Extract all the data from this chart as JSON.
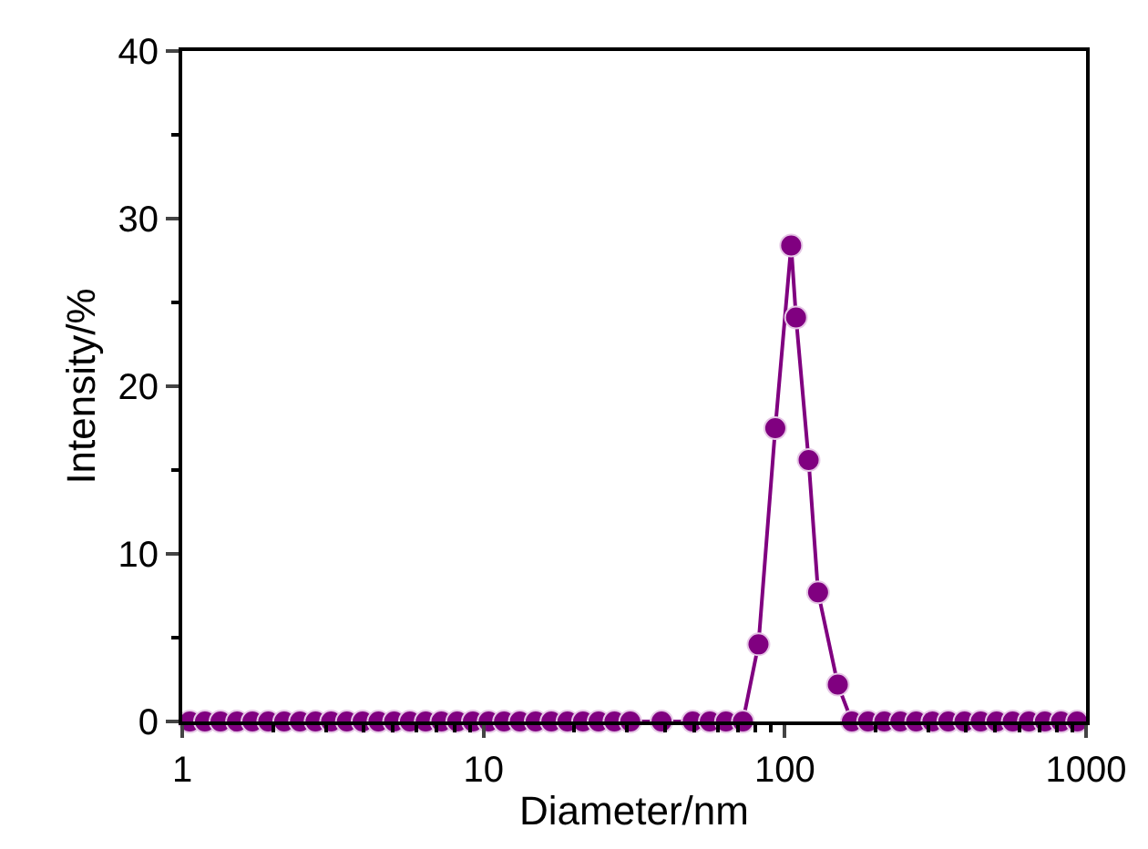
{
  "chart_data": {
    "type": "line",
    "xlabel": "Diameter/nm",
    "ylabel": "Intensity/%",
    "log": "x",
    "xlim": [
      1,
      1000
    ],
    "xticks": [
      1,
      10,
      100,
      1000
    ],
    "ylim": [
      0,
      40
    ],
    "yticks": [
      0,
      10,
      20,
      30,
      40
    ],
    "marker": "circle",
    "line_style": "solid",
    "series": [
      {
        "color": "#800080",
        "x": [
          1.06,
          1.19,
          1.34,
          1.52,
          1.71,
          1.93,
          2.18,
          2.46,
          2.77,
          3.12,
          3.52,
          3.97,
          4.48,
          5.05,
          5.7,
          6.43,
          7.25,
          8.18,
          9.22,
          10.4,
          11.7,
          13.2,
          14.9,
          16.8,
          19.0,
          21.4,
          24.1,
          27.2,
          30.7,
          39,
          49.5,
          56.4,
          63.8,
          72.6,
          81.8,
          93,
          105,
          109,
          120,
          129,
          150,
          167,
          189,
          214,
          242,
          273,
          309,
          349,
          395,
          447,
          505,
          571,
          646,
          730,
          826,
          934
        ],
        "values": [
          0,
          0,
          0,
          0,
          0,
          0,
          0,
          0,
          0,
          0,
          0,
          0,
          0,
          0,
          0,
          0,
          0,
          0,
          0,
          0,
          0,
          0,
          0,
          0,
          0,
          0,
          0,
          0,
          0,
          0,
          0,
          0,
          0,
          0,
          4.6,
          17.5,
          28.4,
          24.1,
          15.6,
          7.7,
          2.2,
          0,
          0,
          0,
          0,
          0,
          0,
          0,
          0,
          0,
          0,
          0,
          0,
          0,
          0,
          0
        ]
      }
    ]
  }
}
